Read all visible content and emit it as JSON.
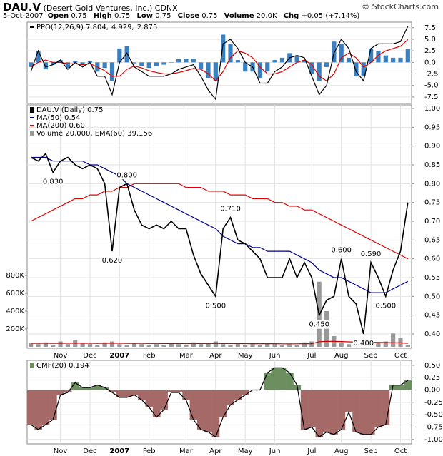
{
  "header": {
    "symbol": "DAU.V",
    "name": "(Desert Gold Ventures, Inc.)",
    "exchange": "CDNX",
    "source": "© StockCharts.com",
    "date": "5-Oct-2007",
    "quote": [
      {
        "label": "Open",
        "value": 0.75
      },
      {
        "label": "High",
        "value": 0.75
      },
      {
        "label": "Low",
        "value": 0.75
      },
      {
        "label": "Close",
        "value": 0.75
      },
      {
        "label": "Volume",
        "value": "20.0K"
      },
      {
        "label": "Chg",
        "value": "+0.05 (+7.14%)"
      }
    ]
  },
  "chart_data": [
    {
      "type": "line",
      "ylim": [
        -8.9,
        8.7
      ],
      "yticks": [
        7.5,
        {
          "value": 5,
          "label": "5.0"
        },
        2.5,
        {
          "value": 0,
          "label": "0.0"
        },
        -2.5,
        {
          "value": -5,
          "label": "-5.0"
        },
        -7.5
      ],
      "grid": true,
      "legend": "top-left",
      "series": [
        {
          "name": "2.875",
          "type": "bar",
          "color": "#3a7fc0",
          "values": [
            -1,
            2.5,
            -1.5,
            -0.5,
            0.5,
            -1.2,
            0.3,
            -0.5,
            0.3,
            -2,
            -1.2,
            -4,
            3,
            3.5,
            -0.2,
            -0.8,
            -1.2,
            -0.8,
            -0.5,
            0,
            0.7,
            0.8,
            0.8,
            -1.5,
            -3.5,
            -4,
            6,
            4,
            0.5,
            -2,
            -2,
            -3.5,
            -2,
            0.5,
            1,
            2,
            1.5,
            0.5,
            -2.5,
            -4,
            -1,
            4.5,
            4,
            1,
            -3,
            -3,
            3,
            2.5,
            1.5,
            1,
            1,
            2.875
          ]
        },
        {
          "name": "4.929,",
          "type": "line",
          "color": "#e00000",
          "values": [
            -1,
            0,
            0.5,
            0,
            0,
            -0.3,
            -0.3,
            -0.5,
            -0.3,
            -1,
            -1.8,
            -3,
            -3,
            -1.5,
            -0.8,
            -1.2,
            -1.8,
            -2.2,
            -2.5,
            -2.5,
            -2.2,
            -1.8,
            -1.3,
            -1.5,
            -2.5,
            -4,
            -2,
            1,
            2.5,
            2,
            1,
            -1,
            -2.5,
            -2.5,
            -2,
            -1,
            0,
            0.5,
            -0.5,
            -3,
            -4,
            -2.5,
            1,
            2,
            1,
            -1,
            0,
            1.5,
            2.5,
            3,
            3.5,
            4.929
          ]
        },
        {
          "name": "PPO(12,26,9) 7.804,",
          "type": "line",
          "color": "#000000",
          "values": [
            -2,
            2.5,
            -1,
            -0.5,
            0.5,
            -1.5,
            0,
            -1,
            0,
            -3,
            -3,
            -7,
            0,
            2,
            -1,
            -2,
            -3,
            -3,
            -3,
            -2.5,
            -1.5,
            -1,
            -0.5,
            -3,
            -6,
            -8,
            4,
            5,
            3,
            0,
            -1,
            -4.5,
            -4.5,
            -2,
            -1,
            1,
            1.5,
            1,
            -3,
            -7,
            -5,
            2,
            5,
            3,
            -2,
            -4,
            3,
            4,
            4,
            4,
            4.5,
            7.804
          ]
        }
      ]
    },
    {
      "type": "line",
      "ylim": [
        0.362,
        1.0095
      ],
      "yticks": [
        {
          "value": 1,
          "label": "1.00"
        },
        {
          "value": 0.95,
          "label": "0.95"
        },
        {
          "value": 0.9,
          "label": "0.90"
        },
        {
          "value": 0.85,
          "label": "0.85"
        },
        {
          "value": 0.8,
          "label": "0.80"
        },
        {
          "value": 0.75,
          "label": "0.75"
        },
        {
          "value": 0.7,
          "label": "0.70"
        },
        {
          "value": 0.65,
          "label": "0.65"
        },
        {
          "value": 0.6,
          "label": "0.60"
        },
        {
          "value": 0.55,
          "label": "0.55"
        },
        {
          "value": 0.5,
          "label": "0.50"
        },
        {
          "value": 0.45,
          "label": "0.45"
        },
        {
          "value": 0.4,
          "label": "0.40"
        }
      ],
      "y2lim": [
        -16000,
        2712000
      ],
      "y2ticks": [
        {
          "value": 800000,
          "label": "800K"
        },
        {
          "value": 600000,
          "label": "600K"
        },
        {
          "value": 400000,
          "label": "400K"
        },
        {
          "value": 200000,
          "label": "200K"
        }
      ],
      "grid": true,
      "legend": "top-left",
      "categories": [
        null,
        null,
        null,
        null,
        "Nov",
        null,
        null,
        null,
        "Dec",
        null,
        null,
        null,
        "2007",
        null,
        null,
        null,
        "Feb",
        null,
        null,
        null,
        null,
        "Mar",
        null,
        null,
        null,
        "Apr",
        null,
        null,
        null,
        "May",
        null,
        null,
        null,
        "Jun",
        null,
        null,
        null,
        null,
        "Jul",
        null,
        null,
        null,
        "Aug",
        null,
        null,
        null,
        "Sep",
        null,
        null,
        null,
        "Oct",
        null
      ],
      "series": [
        {
          "name": "Volume 20,000, EMA(60) 39,156",
          "type": "bar",
          "axis": "y2",
          "color": "#999999",
          "values": [
            40000,
            30000,
            50000,
            20000,
            60000,
            30000,
            80000,
            40000,
            30000,
            20000,
            50000,
            60000,
            30000,
            20000,
            40000,
            30000,
            20000,
            30000,
            20000,
            40000,
            30000,
            20000,
            50000,
            30000,
            40000,
            60000,
            30000,
            20000,
            30000,
            20000,
            30000,
            20000,
            40000,
            30000,
            20000,
            30000,
            20000,
            50000,
            60000,
            730000,
            400000,
            120000,
            50000,
            30000,
            40000,
            60000,
            50000,
            40000,
            60000,
            150000,
            100000,
            20000
          ]
        },
        {
          "type": "line",
          "axis": "y2",
          "color": "#cc0000",
          "values": [
            40000,
            39000,
            40000,
            39000,
            40000,
            40000,
            41000,
            41000,
            40000,
            39000,
            40000,
            41000,
            40000,
            39000,
            39000,
            39000,
            38000,
            38000,
            37000,
            37000,
            37000,
            36000,
            37000,
            37000,
            37000,
            38000,
            37000,
            37000,
            36000,
            36000,
            35000,
            35000,
            35000,
            35000,
            34000,
            34000,
            34000,
            35000,
            35000,
            58000,
            62000,
            61000,
            59000,
            56000,
            53000,
            52000,
            51000,
            49000,
            48000,
            46000,
            45000,
            39156
          ]
        },
        {
          "name": "MA(200) 0.60",
          "type": "line",
          "color": "#e00000",
          "values": [
            0.7,
            0.71,
            0.72,
            0.73,
            0.74,
            0.75,
            0.76,
            0.76,
            0.77,
            0.77,
            0.78,
            0.78,
            0.79,
            0.79,
            0.8,
            0.8,
            0.8,
            0.8,
            0.8,
            0.8,
            0.8,
            0.79,
            0.79,
            0.79,
            0.78,
            0.78,
            0.78,
            0.77,
            0.77,
            0.77,
            0.76,
            0.76,
            0.76,
            0.75,
            0.75,
            0.74,
            0.74,
            0.73,
            0.73,
            0.72,
            0.71,
            0.7,
            0.69,
            0.68,
            0.67,
            0.66,
            0.65,
            0.64,
            0.63,
            0.62,
            0.61,
            0.6
          ]
        },
        {
          "name": "MA(50) 0.54",
          "type": "line",
          "color": "#00008b",
          "values": [
            0.87,
            0.87,
            0.87,
            0.86,
            0.86,
            0.86,
            0.86,
            0.86,
            0.85,
            0.85,
            0.84,
            0.83,
            0.82,
            0.8,
            0.79,
            0.78,
            0.77,
            0.76,
            0.75,
            0.74,
            0.73,
            0.72,
            0.71,
            0.7,
            0.69,
            0.68,
            0.66,
            0.65,
            0.64,
            0.64,
            0.63,
            0.63,
            0.62,
            0.62,
            0.62,
            0.62,
            0.61,
            0.6,
            0.59,
            0.57,
            0.56,
            0.55,
            0.55,
            0.54,
            0.53,
            0.52,
            0.51,
            0.51,
            0.51,
            0.52,
            0.53,
            0.54
          ]
        },
        {
          "name": "DAU.V (Daily) 0.75",
          "type": "line",
          "color": "#000000",
          "values": [
            0.87,
            0.86,
            0.88,
            0.83,
            0.86,
            0.87,
            0.85,
            0.84,
            0.85,
            0.84,
            0.8,
            0.62,
            0.79,
            0.8,
            0.73,
            0.69,
            0.68,
            0.69,
            0.68,
            0.7,
            0.68,
            0.68,
            0.61,
            0.56,
            0.53,
            0.5,
            0.68,
            0.71,
            0.65,
            0.64,
            0.62,
            0.6,
            0.55,
            0.55,
            0.55,
            0.6,
            0.55,
            0.59,
            0.55,
            0.45,
            0.49,
            0.5,
            0.6,
            0.5,
            0.48,
            0.4,
            0.59,
            0.55,
            0.5,
            0.57,
            0.62,
            0.75
          ],
          "value_labels": [
            null,
            null,
            null,
            "0.830",
            null,
            null,
            null,
            null,
            null,
            null,
            null,
            "0.620",
            null,
            "0.800",
            null,
            null,
            null,
            null,
            null,
            null,
            null,
            null,
            null,
            null,
            null,
            "0.500",
            null,
            "0.710",
            null,
            null,
            null,
            null,
            null,
            null,
            null,
            null,
            null,
            null,
            null,
            "0.450",
            null,
            null,
            "0.600",
            null,
            null,
            "0.400",
            "0.590",
            null,
            "0.500",
            null,
            null,
            null
          ]
        }
      ]
    },
    {
      "type": "area",
      "ylim": [
        -1.09,
        0.6
      ],
      "yticks": [
        {
          "value": 0.5,
          "label": "0.50"
        },
        {
          "value": 0.25,
          "label": "0.25"
        },
        {
          "value": 0,
          "label": "0.00"
        },
        {
          "value": -0.25,
          "label": "-0.25"
        },
        {
          "value": -0.5,
          "label": "-0.50"
        },
        {
          "value": -0.75,
          "label": "-0.75"
        },
        {
          "value": -1,
          "label": "-1.00"
        }
      ],
      "grid": true,
      "legend": "top-left",
      "categories": [
        null,
        null,
        null,
        null,
        "Nov",
        null,
        null,
        null,
        "Dec",
        null,
        null,
        null,
        "2007",
        null,
        null,
        null,
        "Feb",
        null,
        null,
        null,
        null,
        "Mar",
        null,
        null,
        null,
        "Apr",
        null,
        null,
        null,
        "May",
        null,
        null,
        null,
        "Jun",
        null,
        null,
        null,
        null,
        "Jul",
        null,
        null,
        null,
        "Aug",
        null,
        null,
        null,
        "Sep",
        null,
        null,
        null,
        "Oct",
        null
      ],
      "series": [
        {
          "name": "CMF(20) 0.194",
          "type": "area",
          "color": "#6b8f5e",
          "negative_color": "#a56a67",
          "values": [
            -0.7,
            -0.8,
            -0.7,
            -0.6,
            -0.1,
            -0.05,
            0.15,
            0.05,
            0.05,
            0.1,
            0.05,
            -0.05,
            -0.15,
            -0.15,
            -0.1,
            -0.2,
            -0.35,
            -0.55,
            -0.4,
            -0.05,
            -0.05,
            -0.2,
            -0.6,
            -0.8,
            -0.85,
            -0.95,
            -0.55,
            -0.3,
            -0.2,
            -0.1,
            0,
            0,
            0.35,
            0.45,
            0.45,
            0.35,
            0.1,
            -0.8,
            -0.75,
            -0.95,
            -0.85,
            -0.9,
            -0.8,
            -0.45,
            -0.85,
            -0.9,
            -0.9,
            -0.75,
            -0.7,
            0.1,
            0.1,
            0.194
          ]
        }
      ]
    }
  ]
}
